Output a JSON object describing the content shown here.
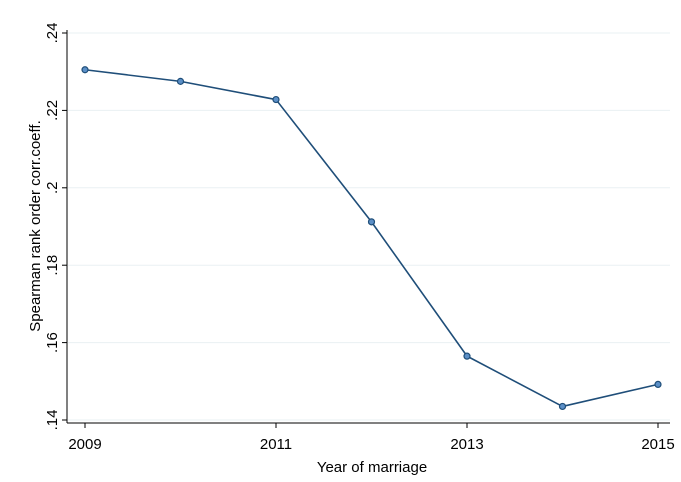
{
  "chart_data": {
    "type": "line",
    "xlabel": "Year of marriage",
    "ylabel": "Spearman rank order corr.coeff.",
    "x": [
      2009,
      2010,
      2011,
      2012,
      2013,
      2014,
      2015
    ],
    "series": [
      {
        "values": [
          0.2305,
          0.2275,
          0.2228,
          0.1912,
          0.1565,
          0.1435,
          0.1492
        ]
      }
    ],
    "xlim": [
      2009,
      2015
    ],
    "ylim": [
      0.14,
      0.24
    ],
    "xticks": [
      2009,
      2011,
      2013,
      2015
    ],
    "xtick_labels": [
      "2009",
      "2011",
      "2013",
      "2015"
    ],
    "yticks": [
      0.14,
      0.16,
      0.18,
      0.2,
      0.22,
      0.24
    ],
    "ytick_labels": [
      ".14",
      ".16",
      ".18",
      ".2",
      ".22",
      ".24"
    ],
    "grid": true,
    "legend": "none",
    "colors": {
      "line": "#1f4e79",
      "marker_fill": "#5b8fc7",
      "grid": "#eaf0f3",
      "axis": "#000000"
    }
  }
}
